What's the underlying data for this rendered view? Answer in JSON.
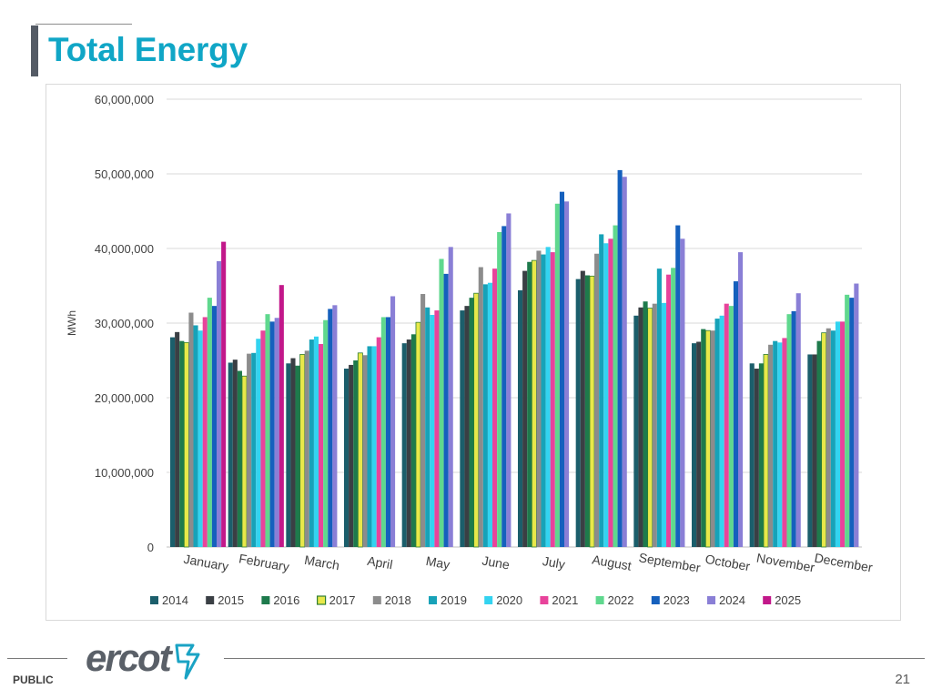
{
  "slide": {
    "title": "Total Energy",
    "footer_label": "PUBLIC",
    "page_number": "21",
    "logo_text": "ercot"
  },
  "chart_data": {
    "type": "bar",
    "title": "",
    "xlabel": "",
    "ylabel": "MWh",
    "ylim": [
      0,
      60000000
    ],
    "y_ticks": [
      "0",
      "10,000,000",
      "20,000,000",
      "30,000,000",
      "40,000,000",
      "50,000,000",
      "60,000,000"
    ],
    "grid": true,
    "legend_position": "bottom",
    "categories": [
      "January",
      "February",
      "March",
      "April",
      "May",
      "June",
      "July",
      "August",
      "September",
      "October",
      "November",
      "December"
    ],
    "series": [
      {
        "name": "2014",
        "color": "#1b5e6b",
        "values": [
          28100000,
          24700000,
          24600000,
          23900000,
          27300000,
          31700000,
          34400000,
          35900000,
          31000000,
          27300000,
          24600000,
          25800000
        ]
      },
      {
        "name": "2015",
        "color": "#3a3f44",
        "values": [
          28800000,
          25100000,
          25300000,
          24400000,
          27800000,
          32300000,
          37000000,
          37000000,
          32100000,
          27500000,
          23900000,
          25800000
        ]
      },
      {
        "name": "2016",
        "color": "#1e7a4c",
        "values": [
          27600000,
          23600000,
          24300000,
          25000000,
          28500000,
          33400000,
          38200000,
          36400000,
          32900000,
          29200000,
          24600000,
          27600000
        ]
      },
      {
        "name": "2017",
        "color": "#e8e84a",
        "values": [
          27400000,
          22900000,
          25800000,
          26000000,
          30100000,
          34000000,
          38400000,
          36300000,
          32000000,
          29000000,
          25800000,
          28700000
        ]
      },
      {
        "name": "2018",
        "color": "#8c8c8c",
        "values": [
          31400000,
          25900000,
          26300000,
          25700000,
          33900000,
          37500000,
          39700000,
          39300000,
          32600000,
          29000000,
          27100000,
          29300000
        ]
      },
      {
        "name": "2019",
        "color": "#17a2b8",
        "values": [
          29700000,
          26000000,
          27800000,
          26900000,
          32100000,
          35200000,
          39200000,
          41900000,
          37300000,
          30600000,
          27600000,
          29000000
        ]
      },
      {
        "name": "2020",
        "color": "#33d3f0",
        "values": [
          29000000,
          27900000,
          28200000,
          26900000,
          31100000,
          35400000,
          40200000,
          40700000,
          32700000,
          31000000,
          27400000,
          30200000
        ]
      },
      {
        "name": "2021",
        "color": "#e8439b",
        "values": [
          30800000,
          29000000,
          27200000,
          28100000,
          31700000,
          37300000,
          39500000,
          41300000,
          36500000,
          32600000,
          28000000,
          30200000
        ]
      },
      {
        "name": "2022",
        "color": "#5fd88e",
        "values": [
          33400000,
          31200000,
          30400000,
          30800000,
          38600000,
          42200000,
          46000000,
          43100000,
          37400000,
          32300000,
          31200000,
          33800000
        ]
      },
      {
        "name": "2023",
        "color": "#1560bd",
        "values": [
          32300000,
          30200000,
          31900000,
          30800000,
          36600000,
          43000000,
          47600000,
          50500000,
          43100000,
          35600000,
          31600000,
          33400000
        ]
      },
      {
        "name": "2024",
        "color": "#8a7fd6",
        "values": [
          38300000,
          30700000,
          32400000,
          33600000,
          40200000,
          44700000,
          46300000,
          49600000,
          41300000,
          39500000,
          34000000,
          35300000
        ]
      },
      {
        "name": "2025",
        "color": "#c2188a",
        "values": [
          40900000,
          35100000,
          null,
          null,
          null,
          null,
          null,
          null,
          null,
          null,
          null,
          null
        ]
      }
    ]
  }
}
